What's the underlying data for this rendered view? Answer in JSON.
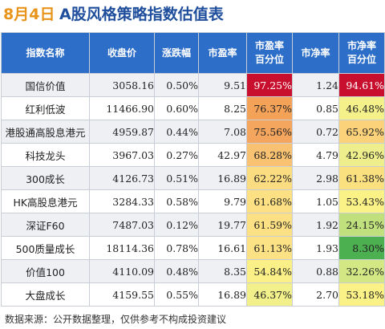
{
  "title": {
    "date": "8月4日",
    "text": "A股风格策略指数估值表"
  },
  "table": {
    "headers": [
      "指数名称",
      "收盘价",
      "涨跌幅",
      "市盈率",
      "市盈率\n百分位",
      "市净率",
      "市净率\n百分位"
    ],
    "rows": [
      {
        "name": "国信价值",
        "close": "3058.16",
        "change": "0.50%",
        "pe": "9.51",
        "pe_pct": "97.25%",
        "pe_pct_value": 97.25,
        "pb": "1.24",
        "pb_pct": "94.61%",
        "pb_pct_value": 94.61,
        "pe_color": "#c8102e",
        "pb_color": "#c8102e",
        "pe_text_color": "#ffffff",
        "pb_text_color": "#ffffff"
      },
      {
        "name": "红利低波",
        "close": "11466.90",
        "change": "0.60%",
        "pe": "8.25",
        "pe_pct": "76.37%",
        "pe_pct_value": 76.37,
        "pb": "0.85",
        "pb_pct": "46.48%",
        "pb_pct_value": 46.48,
        "pe_color": "#f5a259",
        "pb_color": "#f4f08a",
        "pe_text_color": "#222222",
        "pb_text_color": "#222222"
      },
      {
        "name": "港股通高股息港元",
        "close": "4959.87",
        "change": "0.44%",
        "pe": "7.08",
        "pe_pct": "75.56%",
        "pe_pct_value": 75.56,
        "pb": "0.72",
        "pb_pct": "65.92%",
        "pb_pct_value": 65.92,
        "pe_color": "#f5a65e",
        "pb_color": "#fbd27a",
        "pe_text_color": "#222222",
        "pb_text_color": "#222222"
      },
      {
        "name": "科技龙头",
        "close": "3967.03",
        "change": "0.27%",
        "pe": "42.97",
        "pe_pct": "68.28%",
        "pe_pct_value": 68.28,
        "pb": "4.79",
        "pb_pct": "42.96%",
        "pb_pct_value": 42.96,
        "pe_color": "#f8c272",
        "pb_color": "#eeef8c",
        "pe_text_color": "#222222",
        "pb_text_color": "#222222"
      },
      {
        "name": "300成长",
        "close": "4126.73",
        "change": "0.51%",
        "pe": "16.89",
        "pe_pct": "62.22%",
        "pe_pct_value": 62.22,
        "pb": "2.98",
        "pb_pct": "61.38%",
        "pb_pct_value": 61.38,
        "pe_color": "#fbdc80",
        "pb_color": "#fbe080",
        "pe_text_color": "#222222",
        "pb_text_color": "#222222"
      },
      {
        "name": "HK高股息港元",
        "close": "3284.33",
        "change": "0.58%",
        "pe": "9.79",
        "pe_pct": "61.68%",
        "pe_pct_value": 61.68,
        "pb": "1.05",
        "pb_pct": "53.43%",
        "pb_pct_value": 53.43,
        "pe_color": "#fce083",
        "pb_color": "#fbf287",
        "pe_text_color": "#222222",
        "pb_text_color": "#222222"
      },
      {
        "name": "深证F60",
        "close": "7487.03",
        "change": "0.12%",
        "pe": "19.77",
        "pe_pct": "61.59%",
        "pe_pct_value": 61.59,
        "pb": "1.92",
        "pb_pct": "24.15%",
        "pb_pct_value": 24.15,
        "pe_color": "#fce083",
        "pb_color": "#bfe07c",
        "pe_text_color": "#222222",
        "pb_text_color": "#222222"
      },
      {
        "name": "500质量成长",
        "close": "18114.36",
        "change": "0.78%",
        "pe": "16.61",
        "pe_pct": "61.13%",
        "pe_pct_value": 61.13,
        "pb": "1.93",
        "pb_pct": "8.30%",
        "pb_pct_value": 8.3,
        "pe_color": "#fce285",
        "pb_color": "#4caf50",
        "pe_text_color": "#222222",
        "pb_text_color": "#222222"
      },
      {
        "name": "价值100",
        "close": "4110.09",
        "change": "0.48%",
        "pe": "8.35",
        "pe_pct": "54.84%",
        "pe_pct_value": 54.84,
        "pb": "0.88",
        "pb_pct": "32.26%",
        "pb_pct_value": 32.26,
        "pe_color": "#fbf087",
        "pb_color": "#d3e884",
        "pe_text_color": "#222222",
        "pb_text_color": "#222222"
      },
      {
        "name": "大盘成长",
        "close": "4159.55",
        "change": "0.55%",
        "pe": "16.89",
        "pe_pct": "46.37%",
        "pe_pct_value": 46.37,
        "pb": "2.70",
        "pb_pct": "53.18%",
        "pb_pct_value": 53.18,
        "pe_color": "#f2f08a",
        "pb_color": "#fbf287",
        "pe_text_color": "#222222",
        "pb_text_color": "#222222"
      }
    ]
  },
  "footer": "数据来源：公开数据整理，仅供参考不构成投资建议",
  "colors": {
    "header_bg": "#2d6ec8",
    "title_date": "#e8941a",
    "title_text": "#1f4e9c",
    "change_red": "#e0241b"
  }
}
